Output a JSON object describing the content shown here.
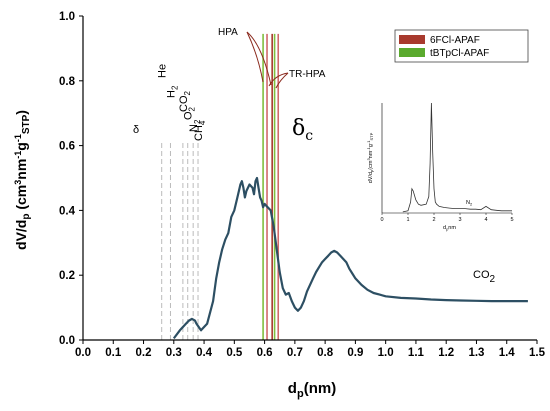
{
  "chart_data": [
    {
      "type": "line",
      "xlabel": "dp(nm)",
      "ylabel": "dV/dp (cm3nm-1g-1STP)",
      "xlim": [
        0.0,
        1.5
      ],
      "ylim": [
        0.0,
        1.0
      ],
      "x_ticks": [
        "0.0",
        "0.1",
        "0.2",
        "0.3",
        "0.4",
        "0.5",
        "0.6",
        "0.7",
        "0.8",
        "0.9",
        "1.0",
        "1.1",
        "1.2",
        "1.3",
        "1.4",
        "1.5"
      ],
      "y_ticks": [
        "0.0",
        "0.2",
        "0.4",
        "0.6",
        "0.8",
        "1.0"
      ],
      "grid": false,
      "line_color": "#2d4f63",
      "series": [
        {
          "name": "CO2",
          "x": [
            0.3,
            0.32,
            0.34,
            0.35,
            0.36,
            0.37,
            0.375,
            0.39,
            0.41,
            0.43,
            0.44,
            0.45,
            0.46,
            0.47,
            0.48,
            0.49,
            0.5,
            0.51,
            0.52,
            0.525,
            0.53,
            0.535,
            0.54,
            0.55,
            0.56,
            0.565,
            0.57,
            0.575,
            0.58,
            0.585,
            0.59,
            0.595,
            0.6,
            0.61,
            0.62,
            0.63,
            0.64,
            0.65,
            0.66,
            0.67,
            0.68,
            0.69,
            0.7,
            0.71,
            0.72,
            0.73,
            0.74,
            0.75,
            0.76,
            0.77,
            0.78,
            0.79,
            0.8,
            0.81,
            0.82,
            0.83,
            0.84,
            0.85,
            0.86,
            0.87,
            0.88,
            0.89,
            0.9,
            0.92,
            0.94,
            0.96,
            0.98,
            1.0,
            1.05,
            1.1,
            1.15,
            1.2,
            1.25,
            1.3,
            1.35,
            1.4,
            1.45,
            1.47
          ],
          "y": [
            0.005,
            0.03,
            0.05,
            0.06,
            0.065,
            0.06,
            0.05,
            0.03,
            0.05,
            0.12,
            0.19,
            0.24,
            0.28,
            0.31,
            0.33,
            0.38,
            0.4,
            0.44,
            0.48,
            0.49,
            0.47,
            0.44,
            0.46,
            0.48,
            0.47,
            0.45,
            0.49,
            0.5,
            0.47,
            0.44,
            0.43,
            0.41,
            0.42,
            0.41,
            0.4,
            0.35,
            0.28,
            0.21,
            0.16,
            0.14,
            0.145,
            0.12,
            0.1,
            0.09,
            0.1,
            0.12,
            0.15,
            0.17,
            0.19,
            0.21,
            0.225,
            0.24,
            0.25,
            0.26,
            0.27,
            0.275,
            0.27,
            0.26,
            0.25,
            0.24,
            0.22,
            0.205,
            0.19,
            0.17,
            0.155,
            0.145,
            0.14,
            0.135,
            0.13,
            0.128,
            0.125,
            0.123,
            0.122,
            0.121,
            0.12,
            0.12,
            0.12,
            0.12
          ]
        }
      ],
      "series_label": "CO2",
      "molecule_lines": [
        {
          "x": 0.26,
          "label": "He"
        },
        {
          "x": 0.289,
          "label": "H2"
        },
        {
          "x": 0.33,
          "label": "CO2"
        },
        {
          "x": 0.346,
          "label": "O2"
        },
        {
          "x": 0.364,
          "label": "N2"
        },
        {
          "x": 0.38,
          "label": "CH4"
        }
      ],
      "region_labels": {
        "delta": "δ",
        "delta_c": "δ",
        "delta_c_sub": "c"
      },
      "hpa_lines": [
        {
          "x": 0.595,
          "color": "#7fbf3f"
        },
        {
          "x": 0.608,
          "color": "#d06a6a"
        },
        {
          "x": 0.625,
          "color": "#a83a2e"
        },
        {
          "x": 0.633,
          "color": "#7fbf3f"
        },
        {
          "x": 0.645,
          "color": "#d06a6a"
        }
      ],
      "annotations": {
        "hpa": "HPA",
        "tr_hpa": "TR-HPA"
      },
      "legend": {
        "position": "top-right",
        "entries": [
          {
            "label": "6FCl-APAF",
            "color": "#a83a2e"
          },
          {
            "label": "tBTpCl-APAF",
            "color": "#5aaa2e"
          }
        ]
      },
      "molecule_line_color": "#bbbbbb"
    },
    {
      "type": "line",
      "xlabel": "dpnm",
      "ylabel": "dV/dp (cm3nm-1g-1STP)",
      "xlim": [
        0,
        5
      ],
      "x_ticks": [
        "0",
        "1",
        "2",
        "3",
        "4",
        "5"
      ],
      "ylim": [
        0,
        1.0
      ],
      "annotation": "N2",
      "series": [
        {
          "x": [
            0.8,
            1.0,
            1.1,
            1.15,
            1.2,
            1.3,
            1.4,
            1.5,
            1.7,
            1.8,
            1.85,
            1.9,
            1.95,
            2.0,
            2.05,
            2.1,
            2.2,
            2.4,
            2.6,
            2.8,
            3.0,
            3.2,
            3.4,
            3.6,
            3.8,
            4.0,
            4.2,
            4.4,
            4.6,
            4.8,
            5.0
          ],
          "y": [
            0.01,
            0.02,
            0.1,
            0.22,
            0.2,
            0.12,
            0.08,
            0.07,
            0.08,
            0.15,
            0.45,
            1.0,
            0.55,
            0.22,
            0.1,
            0.08,
            0.06,
            0.05,
            0.045,
            0.04,
            0.04,
            0.04,
            0.035,
            0.035,
            0.03,
            0.06,
            0.03,
            0.025,
            0.02,
            0.02,
            0.02
          ]
        }
      ]
    }
  ]
}
